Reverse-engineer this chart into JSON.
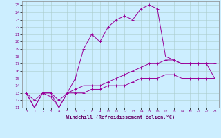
{
  "xlabel": "Windchill (Refroidissement éolien,°C)",
  "bg_color": "#cceeff",
  "line_color": "#990099",
  "xlim": [
    -0.5,
    23.5
  ],
  "ylim": [
    11,
    25.5
  ],
  "xticks": [
    0,
    1,
    2,
    3,
    4,
    5,
    6,
    7,
    8,
    9,
    10,
    11,
    12,
    13,
    14,
    15,
    16,
    17,
    18,
    19,
    20,
    21,
    22,
    23
  ],
  "yticks": [
    11,
    12,
    13,
    14,
    15,
    16,
    17,
    18,
    19,
    20,
    21,
    22,
    23,
    24,
    25
  ],
  "line1_x": [
    0,
    1,
    2,
    3,
    4,
    5,
    6,
    7,
    8,
    9,
    10,
    11,
    12,
    13,
    14,
    15,
    16,
    17,
    18,
    19,
    20,
    21,
    22,
    23
  ],
  "line1_y": [
    13,
    11,
    13,
    13,
    11,
    13,
    15,
    19,
    21,
    20,
    22,
    23,
    23.5,
    23,
    24.5,
    25,
    24.5,
    18,
    17.5,
    17,
    17,
    17,
    17,
    15
  ],
  "line2_x": [
    0,
    1,
    2,
    3,
    4,
    5,
    6,
    7,
    8,
    9,
    10,
    11,
    12,
    13,
    14,
    15,
    16,
    17,
    18,
    19,
    20,
    21,
    22,
    23
  ],
  "line2_y": [
    13,
    11,
    13,
    12.5,
    11,
    13,
    13.5,
    14,
    14,
    14,
    14.5,
    15,
    15.5,
    16,
    16.5,
    17,
    17,
    17.5,
    17.5,
    17,
    17,
    17,
    17,
    17
  ],
  "line3_x": [
    0,
    1,
    2,
    3,
    4,
    5,
    6,
    7,
    8,
    9,
    10,
    11,
    12,
    13,
    14,
    15,
    16,
    17,
    18,
    19,
    20,
    21,
    22,
    23
  ],
  "line3_y": [
    13,
    12,
    13,
    13,
    12,
    13,
    13,
    13,
    13.5,
    13.5,
    14,
    14,
    14,
    14.5,
    15,
    15,
    15,
    15.5,
    15.5,
    15,
    15,
    15,
    15,
    15
  ]
}
